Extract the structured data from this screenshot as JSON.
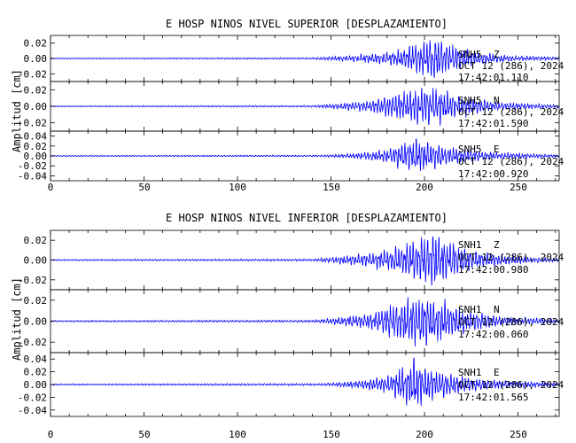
{
  "chart_data": [
    {
      "type": "line",
      "title": "E HOSP NINOS NIVEL SUPERIOR [DESPLAZAMIENTO]",
      "ylabel": "Amplitud [cm]",
      "xlabel": "",
      "xlim": [
        0,
        272
      ],
      "xticks": [
        "0",
        "50",
        "100",
        "150",
        "200",
        "250"
      ],
      "grid": false,
      "color": "#0000ff",
      "panels": [
        {
          "station": "SNH5",
          "component": "Z",
          "date": "OCT 12 (286), 2024",
          "time": "17:42:01.110",
          "ylim": [
            -0.03,
            0.03
          ],
          "yticks": [
            "0.02",
            "0.00",
            "-0.02"
          ],
          "envelope": [
            {
              "t": 0,
              "amp": 0.0008
            },
            {
              "t": 140,
              "amp": 0.0012
            },
            {
              "t": 145,
              "amp": 0.002
            },
            {
              "t": 160,
              "amp": 0.004
            },
            {
              "t": 180,
              "amp": 0.008
            },
            {
              "t": 190,
              "amp": 0.015
            },
            {
              "t": 200,
              "amp": 0.024
            },
            {
              "t": 206,
              "amp": 0.03
            },
            {
              "t": 212,
              "amp": 0.022
            },
            {
              "t": 225,
              "amp": 0.01
            },
            {
              "t": 245,
              "amp": 0.004
            },
            {
              "t": 272,
              "amp": 0.002
            }
          ]
        },
        {
          "station": "SNH5",
          "component": "N",
          "date": "OCT 12 (286), 2024",
          "time": "17:42:01.590",
          "ylim": [
            -0.03,
            0.03
          ],
          "yticks": [
            "0.02",
            "0.00",
            "-0.02"
          ],
          "envelope": [
            {
              "t": 0,
              "amp": 0.0008
            },
            {
              "t": 140,
              "amp": 0.0012
            },
            {
              "t": 150,
              "amp": 0.003
            },
            {
              "t": 170,
              "amp": 0.007
            },
            {
              "t": 183,
              "amp": 0.015
            },
            {
              "t": 193,
              "amp": 0.022
            },
            {
              "t": 200,
              "amp": 0.026
            },
            {
              "t": 210,
              "amp": 0.02
            },
            {
              "t": 222,
              "amp": 0.012
            },
            {
              "t": 240,
              "amp": 0.005
            },
            {
              "t": 272,
              "amp": 0.002
            }
          ]
        },
        {
          "station": "SNH5",
          "component": "E",
          "date": "OCT 12 (286), 2024",
          "time": "17:42:00.920",
          "ylim": [
            -0.05,
            0.05
          ],
          "yticks": [
            "0.04",
            "0.02",
            "0.00",
            "-0.02",
            "-0.04"
          ],
          "envelope": [
            {
              "t": 0,
              "amp": 0.0012
            },
            {
              "t": 145,
              "amp": 0.002
            },
            {
              "t": 165,
              "amp": 0.006
            },
            {
              "t": 180,
              "amp": 0.014
            },
            {
              "t": 190,
              "amp": 0.03
            },
            {
              "t": 196,
              "amp": 0.04
            },
            {
              "t": 203,
              "amp": 0.03
            },
            {
              "t": 215,
              "amp": 0.018
            },
            {
              "t": 235,
              "amp": 0.008
            },
            {
              "t": 272,
              "amp": 0.003
            }
          ]
        }
      ]
    },
    {
      "type": "line",
      "title": "E HOSP NINOS NIVEL INFERIOR [DESPLAZAMIENTO]",
      "ylabel": "Amplitud [cm]",
      "xlabel": "",
      "xlim": [
        0,
        272
      ],
      "xticks": [
        "0",
        "50",
        "100",
        "150",
        "200",
        "250"
      ],
      "grid": false,
      "color": "#0000ff",
      "panels": [
        {
          "station": "SNH1",
          "component": "Z",
          "date": "OCT 12 (286), 2024",
          "time": "17:42:00.980",
          "ylim": [
            -0.03,
            0.03
          ],
          "yticks": [
            "0.02",
            "0.00",
            "-0.02"
          ],
          "envelope": [
            {
              "t": 0,
              "amp": 0.0008
            },
            {
              "t": 140,
              "amp": 0.0012
            },
            {
              "t": 150,
              "amp": 0.003
            },
            {
              "t": 170,
              "amp": 0.007
            },
            {
              "t": 185,
              "amp": 0.014
            },
            {
              "t": 197,
              "amp": 0.024
            },
            {
              "t": 205,
              "amp": 0.028
            },
            {
              "t": 213,
              "amp": 0.02
            },
            {
              "t": 228,
              "amp": 0.009
            },
            {
              "t": 250,
              "amp": 0.004
            },
            {
              "t": 272,
              "amp": 0.002
            }
          ]
        },
        {
          "station": "SNH1",
          "component": "N",
          "date": "OCT 12 (286), 2024",
          "time": "17:42:00.060",
          "ylim": [
            -0.03,
            0.03
          ],
          "yticks": [
            "0.02",
            "0.00",
            "-0.02"
          ],
          "envelope": [
            {
              "t": 0,
              "amp": 0.0008
            },
            {
              "t": 140,
              "amp": 0.0012
            },
            {
              "t": 150,
              "amp": 0.003
            },
            {
              "t": 170,
              "amp": 0.008
            },
            {
              "t": 182,
              "amp": 0.016
            },
            {
              "t": 192,
              "amp": 0.024
            },
            {
              "t": 200,
              "amp": 0.027
            },
            {
              "t": 210,
              "amp": 0.02
            },
            {
              "t": 222,
              "amp": 0.012
            },
            {
              "t": 240,
              "amp": 0.005
            },
            {
              "t": 272,
              "amp": 0.002
            }
          ]
        },
        {
          "station": "SNH1",
          "component": "E",
          "date": "OCT 12 (286), 2024",
          "time": "17:42:01.565",
          "ylim": [
            -0.05,
            0.05
          ],
          "yticks": [
            "0.04",
            "0.02",
            "0.00",
            "-0.02",
            "-0.04"
          ],
          "envelope": [
            {
              "t": 0,
              "amp": 0.0012
            },
            {
              "t": 145,
              "amp": 0.002
            },
            {
              "t": 165,
              "amp": 0.006
            },
            {
              "t": 180,
              "amp": 0.014
            },
            {
              "t": 188,
              "amp": 0.028
            },
            {
              "t": 194,
              "amp": 0.044
            },
            {
              "t": 201,
              "amp": 0.03
            },
            {
              "t": 213,
              "amp": 0.018
            },
            {
              "t": 232,
              "amp": 0.008
            },
            {
              "t": 272,
              "amp": 0.003
            }
          ]
        }
      ]
    }
  ]
}
